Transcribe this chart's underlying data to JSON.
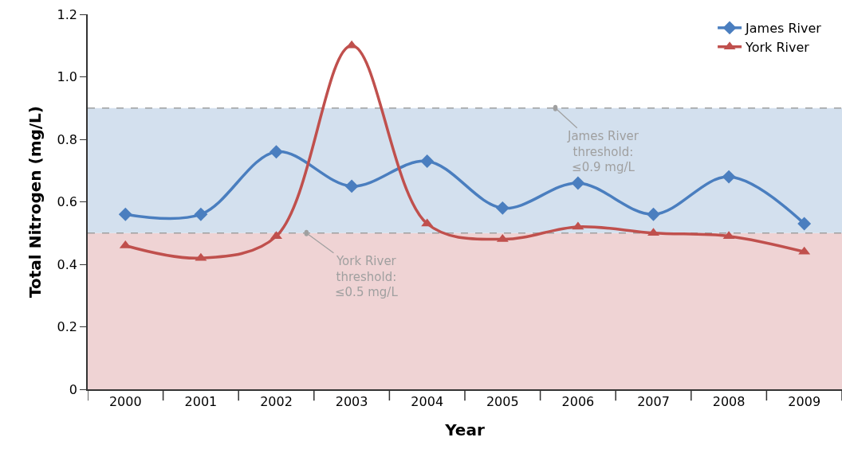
{
  "chart_data": {
    "type": "line",
    "xlabel": "Year",
    "ylabel": "Total Nitrogen (mg/L)",
    "categories": [
      "2000",
      "2001",
      "2002",
      "2003",
      "2004",
      "2005",
      "2006",
      "2007",
      "2008",
      "2009"
    ],
    "series": [
      {
        "name": "James River",
        "color": "#4a7ebf",
        "marker": "diamond",
        "values": [
          0.56,
          0.56,
          0.76,
          0.65,
          0.73,
          0.58,
          0.66,
          0.56,
          0.68,
          0.53
        ]
      },
      {
        "name": "York River",
        "color": "#c0504d",
        "marker": "triangle",
        "values": [
          0.46,
          0.42,
          0.49,
          1.1,
          0.53,
          0.48,
          0.52,
          0.5,
          0.49,
          0.44
        ]
      }
    ],
    "ylim": [
      0,
      1.2
    ],
    "yticks": [
      0,
      0.2,
      0.4,
      0.6,
      0.8,
      {
        "value": 1,
        "label": "1.0"
      },
      1.2
    ],
    "bands": [
      {
        "axis": "y",
        "from": 0,
        "to": 0.5,
        "color": "#efd3d4"
      },
      {
        "axis": "y",
        "from": 0.5,
        "to": 0.9,
        "color": "#d3e0ee"
      }
    ],
    "ref_lines": [
      {
        "axis": "y",
        "value": 0.9,
        "label": "James River\nthreshold:\n≤0.9 mg/L",
        "color": "#a0a0a0",
        "line_style": "dashed"
      },
      {
        "axis": "y",
        "value": 0.5,
        "label": "York River\nthreshold:\n≤0.5 mg/L",
        "color": "#a0a0a0",
        "line_style": "dashed"
      }
    ],
    "line_style": "solid",
    "grid": false,
    "legend": "top right"
  }
}
